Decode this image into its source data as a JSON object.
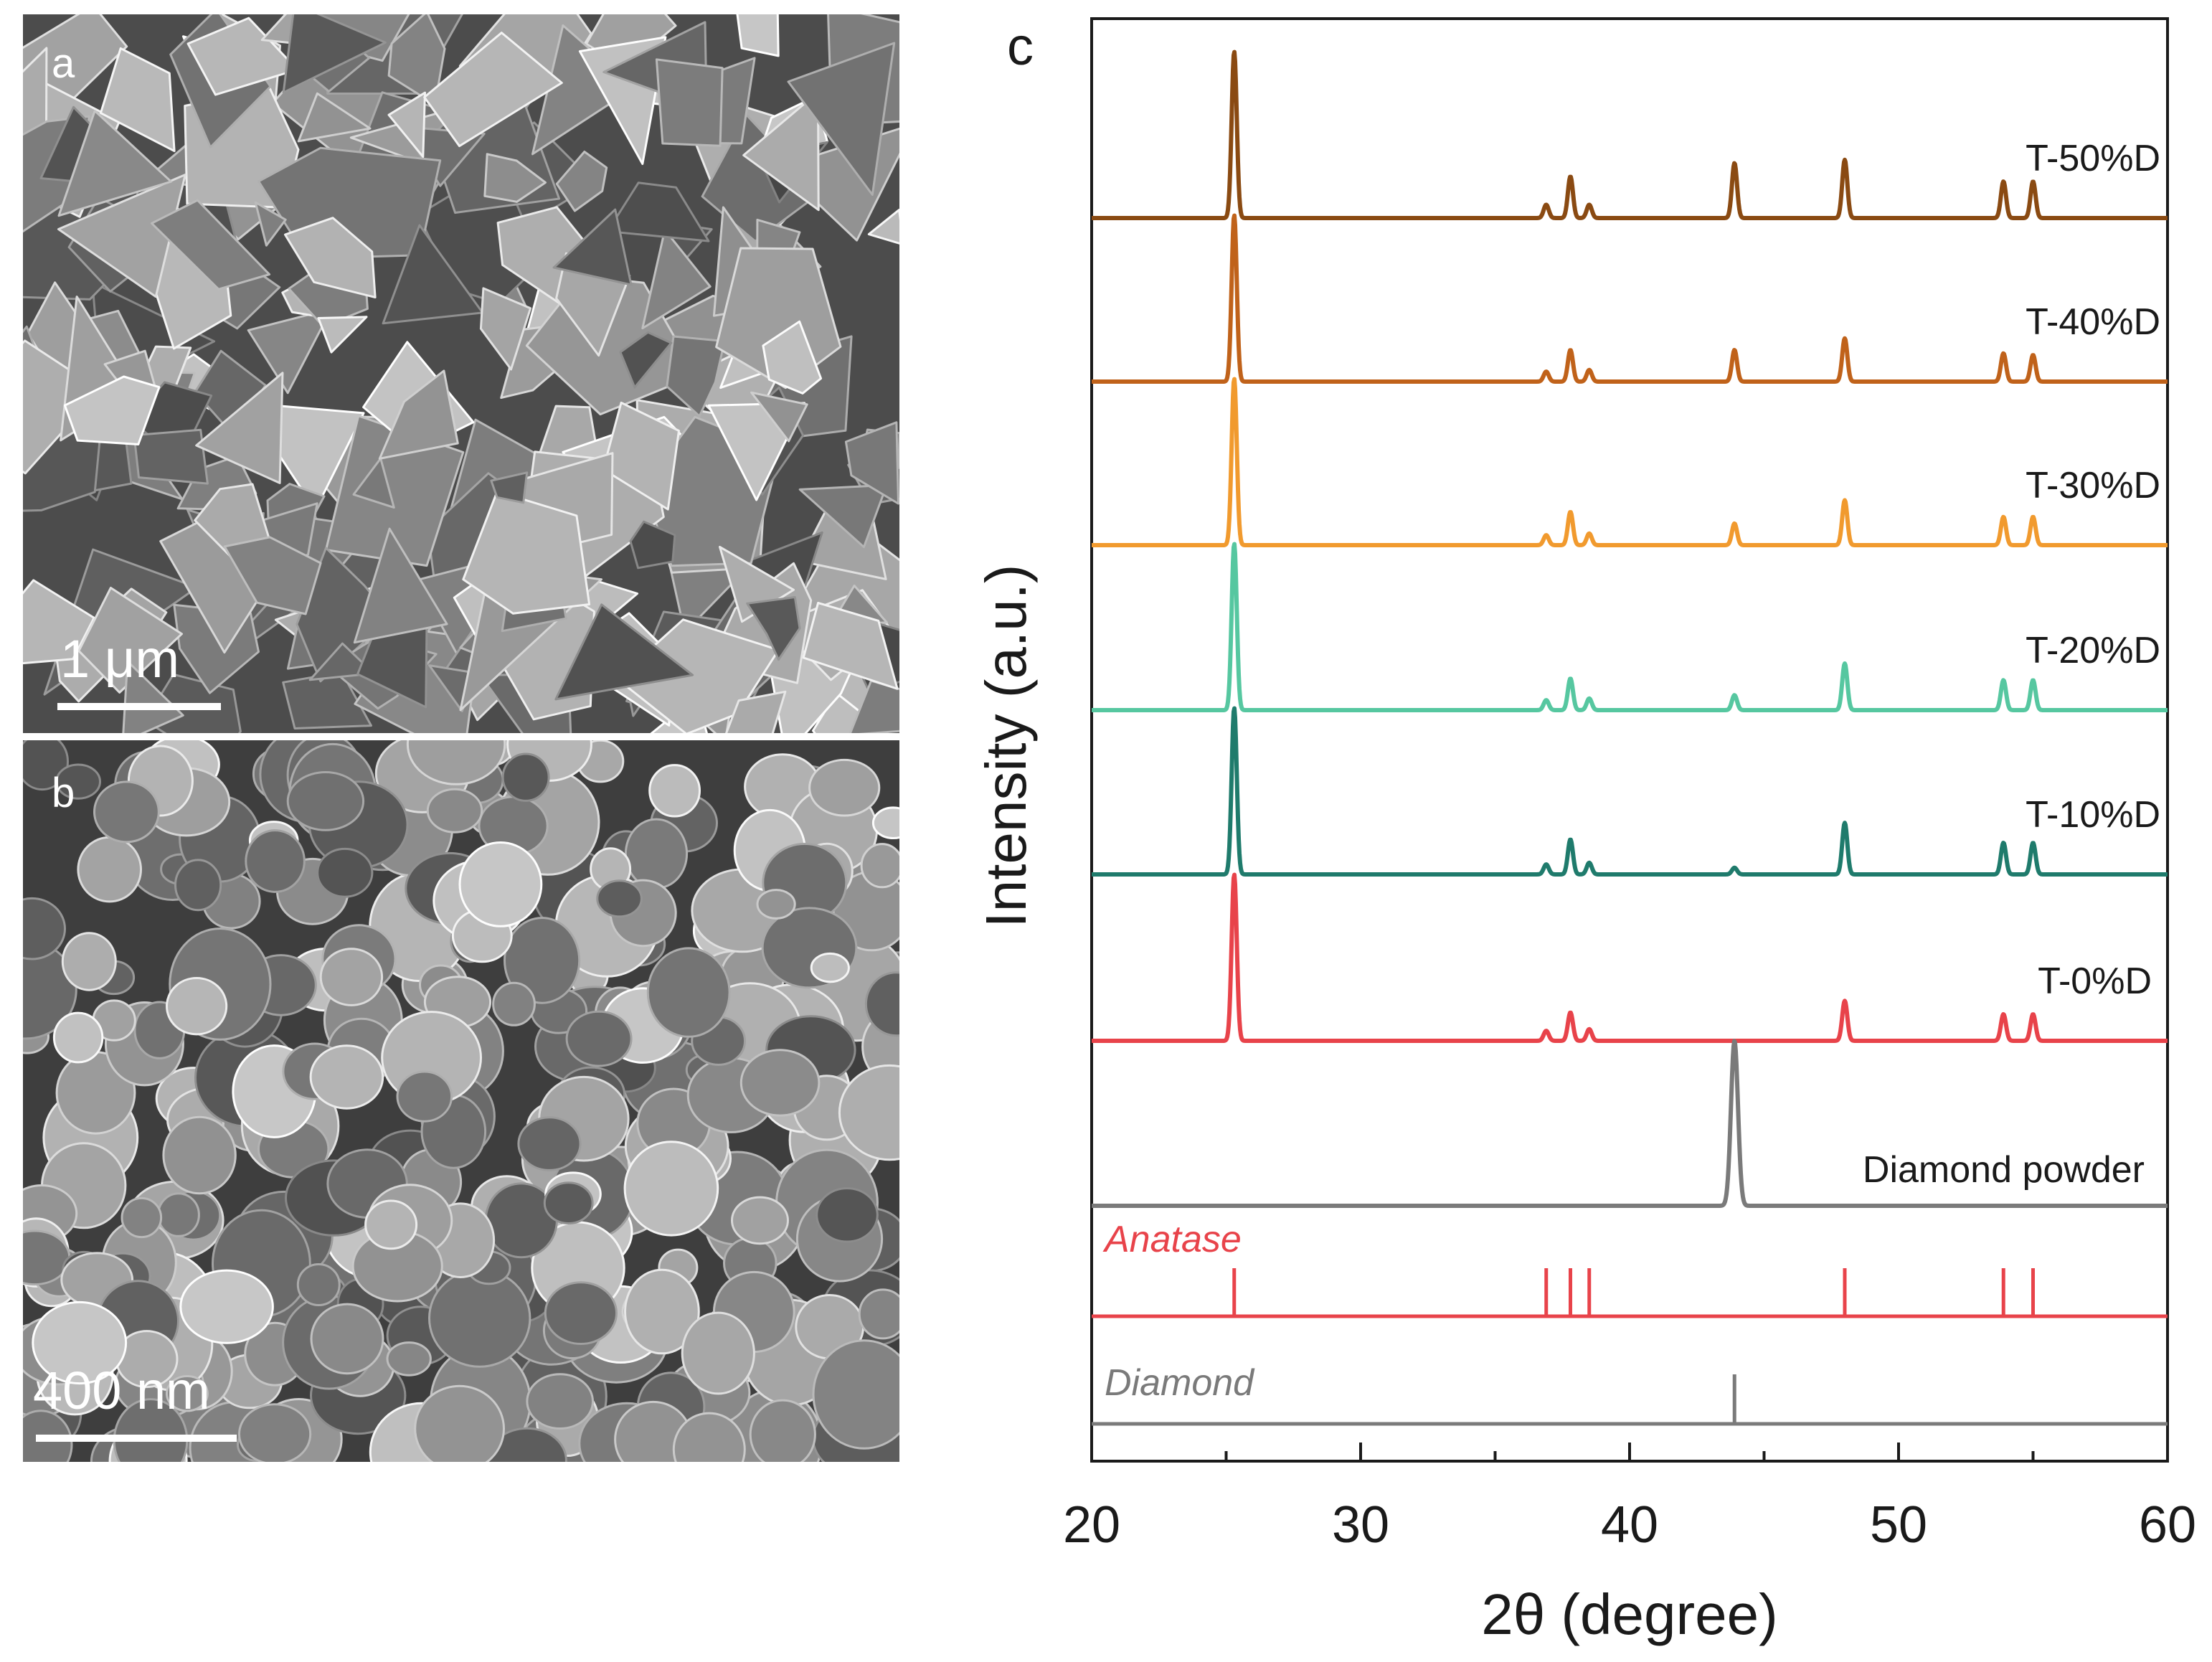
{
  "panels": {
    "a": {
      "label": "a",
      "scale_bar": "1 μm",
      "texture": "faceted angular particles"
    },
    "b": {
      "label": "b",
      "scale_bar": "400 nm",
      "texture": "rounded particles"
    }
  },
  "colors": {
    "T-50%D": "#8a4a12",
    "T-40%D": "#c0621a",
    "T-30%D": "#f19a2e",
    "T-20%D": "#56c7a0",
    "T-10%D": "#1f7b6c",
    "T-0%D": "#e8434a",
    "Diamond powder": "#7a7a7a",
    "Anatase": "#e8434a",
    "Diamond": "#7a7a7a",
    "axis": "#1a1a1a"
  },
  "chart_data": {
    "panel_label": "c",
    "type": "line",
    "xlabel": "2θ (degree)",
    "ylabel": "Intensity (a.u.)",
    "xlim": [
      20,
      60
    ],
    "xticks": [
      "20",
      "30",
      "40",
      "50",
      "60"
    ],
    "series": [
      {
        "name": "T-50%D",
        "peaks": [
          [
            25.3,
            1.0
          ],
          [
            36.9,
            0.08
          ],
          [
            37.8,
            0.25
          ],
          [
            38.5,
            0.08
          ],
          [
            43.9,
            0.33
          ],
          [
            48.0,
            0.35
          ],
          [
            53.9,
            0.22
          ],
          [
            55.0,
            0.22
          ]
        ]
      },
      {
        "name": "T-40%D",
        "peaks": [
          [
            25.3,
            1.0
          ],
          [
            36.9,
            0.06
          ],
          [
            37.8,
            0.19
          ],
          [
            38.5,
            0.07
          ],
          [
            43.9,
            0.19
          ],
          [
            48.0,
            0.26
          ],
          [
            53.9,
            0.17
          ],
          [
            55.0,
            0.16
          ]
        ]
      },
      {
        "name": "T-30%D",
        "peaks": [
          [
            25.3,
            1.0
          ],
          [
            36.9,
            0.06
          ],
          [
            37.8,
            0.2
          ],
          [
            38.5,
            0.07
          ],
          [
            43.9,
            0.13
          ],
          [
            48.0,
            0.27
          ],
          [
            53.9,
            0.17
          ],
          [
            55.0,
            0.17
          ]
        ]
      },
      {
        "name": "T-20%D",
        "peaks": [
          [
            25.3,
            1.0
          ],
          [
            36.9,
            0.06
          ],
          [
            37.8,
            0.19
          ],
          [
            38.5,
            0.07
          ],
          [
            43.9,
            0.09
          ],
          [
            48.0,
            0.28
          ],
          [
            53.9,
            0.18
          ],
          [
            55.0,
            0.18
          ]
        ]
      },
      {
        "name": "T-10%D",
        "peaks": [
          [
            25.3,
            1.0
          ],
          [
            36.9,
            0.06
          ],
          [
            37.8,
            0.21
          ],
          [
            38.5,
            0.07
          ],
          [
            43.9,
            0.04
          ],
          [
            48.0,
            0.31
          ],
          [
            53.9,
            0.19
          ],
          [
            55.0,
            0.19
          ]
        ]
      },
      {
        "name": "T-0%D",
        "peaks": [
          [
            25.3,
            1.0
          ],
          [
            36.9,
            0.06
          ],
          [
            37.8,
            0.17
          ],
          [
            38.5,
            0.07
          ],
          [
            48.0,
            0.24
          ],
          [
            53.9,
            0.16
          ],
          [
            55.0,
            0.16
          ]
        ]
      },
      {
        "name": "Diamond powder",
        "peaks": [
          [
            43.9,
            1.0
          ]
        ]
      }
    ],
    "reference_patterns": [
      {
        "name": "Anatase",
        "positions": [
          25.3,
          36.9,
          37.8,
          38.5,
          48.0,
          53.9,
          55.0
        ]
      },
      {
        "name": "Diamond",
        "positions": [
          43.9
        ]
      }
    ]
  }
}
